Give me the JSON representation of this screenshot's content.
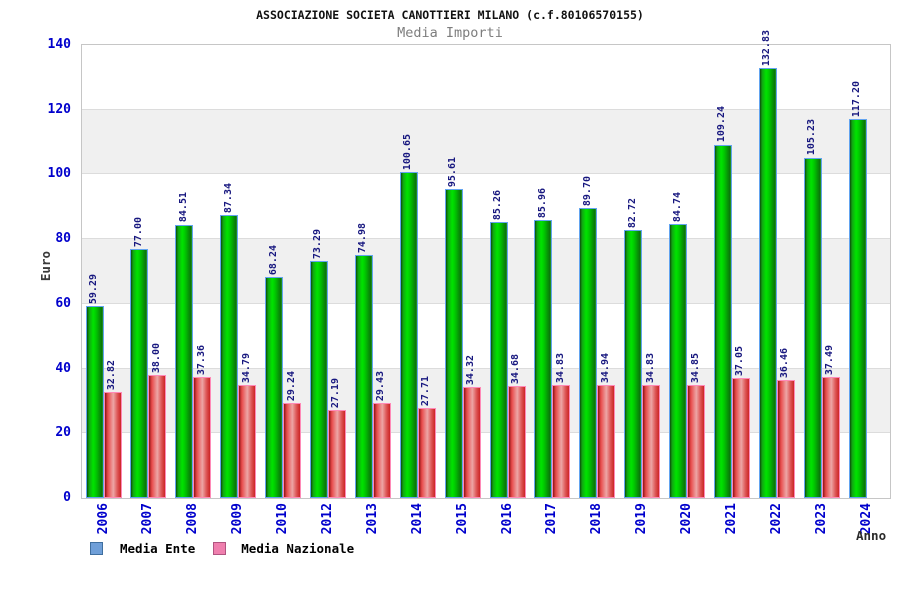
{
  "chart_data": {
    "type": "bar",
    "title": "ASSOCIAZIONE SOCIETA CANOTTIERI MILANO (c.f.80106570155)",
    "subtitle": "Media Importi",
    "xlabel": "Anno",
    "ylabel": "Euro",
    "ylim": [
      0,
      140
    ],
    "ytick_step": 20,
    "grid": "horizontal-alternating-bands",
    "legend_position": "bottom-left",
    "value_label_format": "2-decimals-rotated-90",
    "categories": [
      "2006",
      "2007",
      "2008",
      "2009",
      "2010",
      "2012",
      "2013",
      "2014",
      "2015",
      "2016",
      "2017",
      "2018",
      "2019",
      "2020",
      "2021",
      "2022",
      "2023",
      "2024"
    ],
    "series": [
      {
        "name": "Media Ente",
        "slug": "media-ente",
        "bar_color": "#00cc00",
        "bar_border_color": "#63a4f0",
        "legend_swatch_color": "#6f9fd8",
        "legend_swatch_border": "#3f6f9f",
        "values": [
          59.29,
          77.0,
          84.51,
          87.34,
          68.24,
          73.29,
          74.98,
          100.65,
          95.61,
          85.26,
          85.96,
          89.7,
          82.72,
          84.74,
          109.24,
          132.83,
          105.23,
          117.2
        ]
      },
      {
        "name": "Media Nazionale",
        "slug": "media-nazionale",
        "bar_color": "#dd4444",
        "bar_border_color": "#ff8ab8",
        "legend_swatch_color": "#ef7fae",
        "legend_swatch_border": "#b05480",
        "values": [
          32.82,
          38.0,
          37.36,
          34.79,
          29.24,
          27.19,
          29.43,
          27.71,
          34.32,
          34.68,
          34.83,
          34.94,
          34.83,
          34.85,
          37.05,
          36.46,
          37.49,
          null
        ]
      }
    ],
    "colors": {
      "axis_tick_text": "#0000cc",
      "value_label_text": "#17177f",
      "title_text": "#111111",
      "subtitle_text": "#7d7d7d",
      "band_gray": "#f0f0f0",
      "band_white": "#ffffff",
      "gridline": "#dcdcdc",
      "plot_border": "#c6c6c6"
    }
  }
}
